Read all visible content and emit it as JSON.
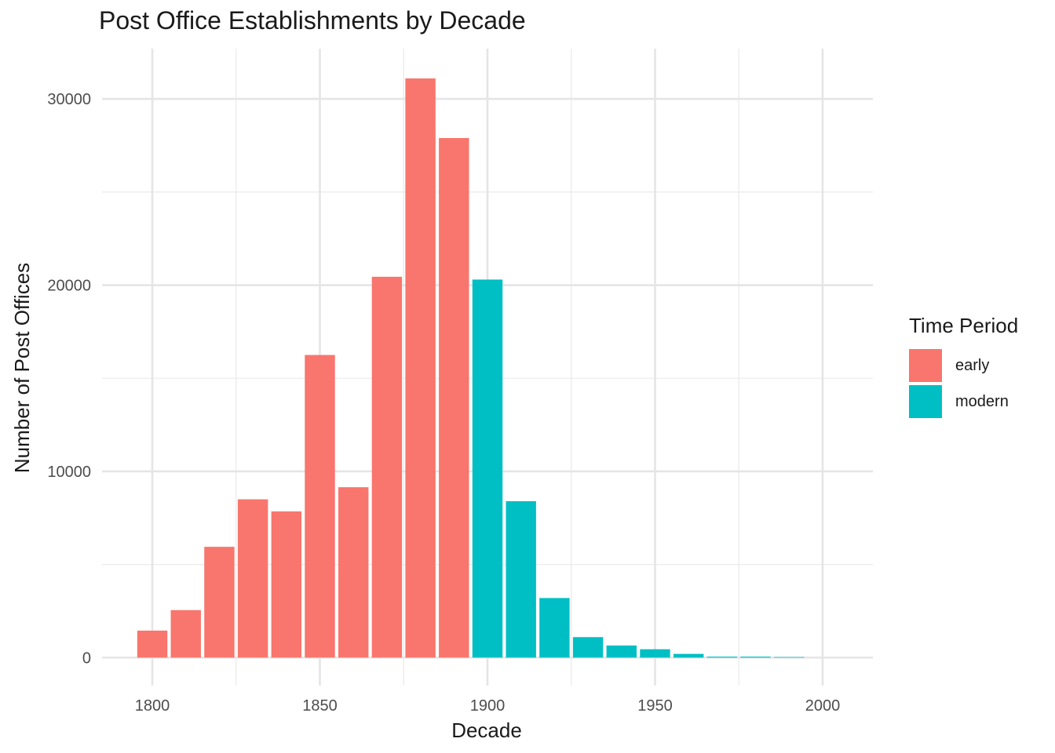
{
  "chart_data": {
    "type": "bar",
    "title": "Post Office Establishments by Decade",
    "xlabel": "Decade",
    "ylabel": "Number of Post Offices",
    "x": [
      1800,
      1810,
      1820,
      1830,
      1840,
      1850,
      1860,
      1870,
      1880,
      1890,
      1900,
      1910,
      1920,
      1930,
      1940,
      1950,
      1960,
      1970,
      1980,
      1990
    ],
    "values": [
      1450,
      2550,
      5950,
      8500,
      7850,
      16250,
      9150,
      20450,
      31100,
      27900,
      20300,
      8400,
      3200,
      1100,
      650,
      450,
      200,
      50,
      50,
      30
    ],
    "groups": [
      "early",
      "early",
      "early",
      "early",
      "early",
      "early",
      "early",
      "early",
      "early",
      "early",
      "modern",
      "modern",
      "modern",
      "modern",
      "modern",
      "modern",
      "modern",
      "modern",
      "modern",
      "modern"
    ],
    "xlim": [
      1785,
      2015
    ],
    "ylim": [
      -1500,
      32700
    ],
    "x_ticks": [
      1800,
      1850,
      1900,
      1950,
      2000
    ],
    "y_ticks": [
      0,
      10000,
      20000,
      30000
    ],
    "grid": true,
    "legend": {
      "title": "Time Period",
      "position": "right",
      "entries": [
        {
          "name": "early",
          "color": "#F8766D"
        },
        {
          "name": "modern",
          "color": "#00BFC4"
        }
      ]
    }
  }
}
